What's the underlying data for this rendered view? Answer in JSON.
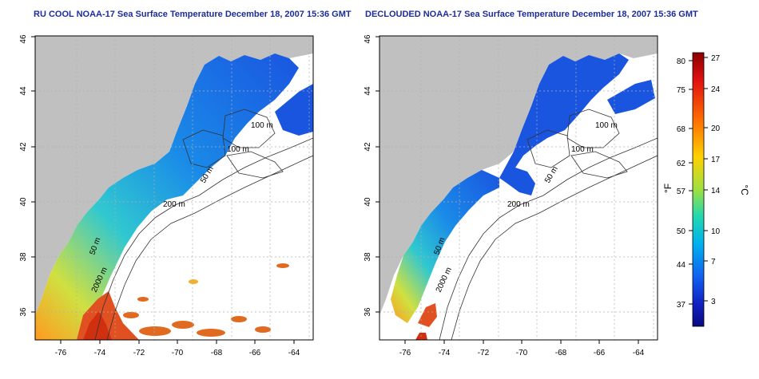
{
  "left_panel": {
    "title": "RU COOL NOAA-17 Sea Surface Temperature December 18, 2007 15:36 GMT"
  },
  "right_panel": {
    "title": "DECLOUDED NOAA-17 Sea Surface Temperature December 18, 2007 15:36 GMT"
  },
  "axes": {
    "lon_ticks": [
      "-76",
      "-74",
      "-72",
      "-70",
      "-68",
      "-66",
      "-64"
    ],
    "lat_ticks": [
      "36",
      "38",
      "40",
      "42",
      "44",
      "46"
    ],
    "lon_range": [
      -77.2,
      -62.9
    ],
    "lat_range": [
      35,
      46
    ]
  },
  "contour_labels": {
    "left": [
      "100 m",
      "100 m",
      "50 m",
      "200 m",
      "50 m",
      "2000 m"
    ],
    "right": [
      "100 m",
      "100 m",
      "50 m",
      "200 m",
      "50 m",
      "2000 m"
    ]
  },
  "colorbar": {
    "fahrenheit_label": "°F",
    "celsius_label": "°C",
    "fahrenheit_ticks": [
      "80",
      "75",
      "68",
      "62",
      "57",
      "50",
      "44",
      "37"
    ],
    "celsius_ticks": [
      "27",
      "24",
      "20",
      "17",
      "14",
      "10",
      "7",
      "3"
    ],
    "gradient_colors": [
      "#8b0000",
      "#e01010",
      "#ff7000",
      "#ffd000",
      "#9fe040",
      "#20d8b0",
      "#00b0f0",
      "#1060f0",
      "#1020c0",
      "#0a0a80"
    ]
  },
  "colors": {
    "land": "#c0c0c0",
    "ocean": "#ffffff",
    "cold_water": "#1a55e0",
    "title": "#1c2c9c"
  }
}
